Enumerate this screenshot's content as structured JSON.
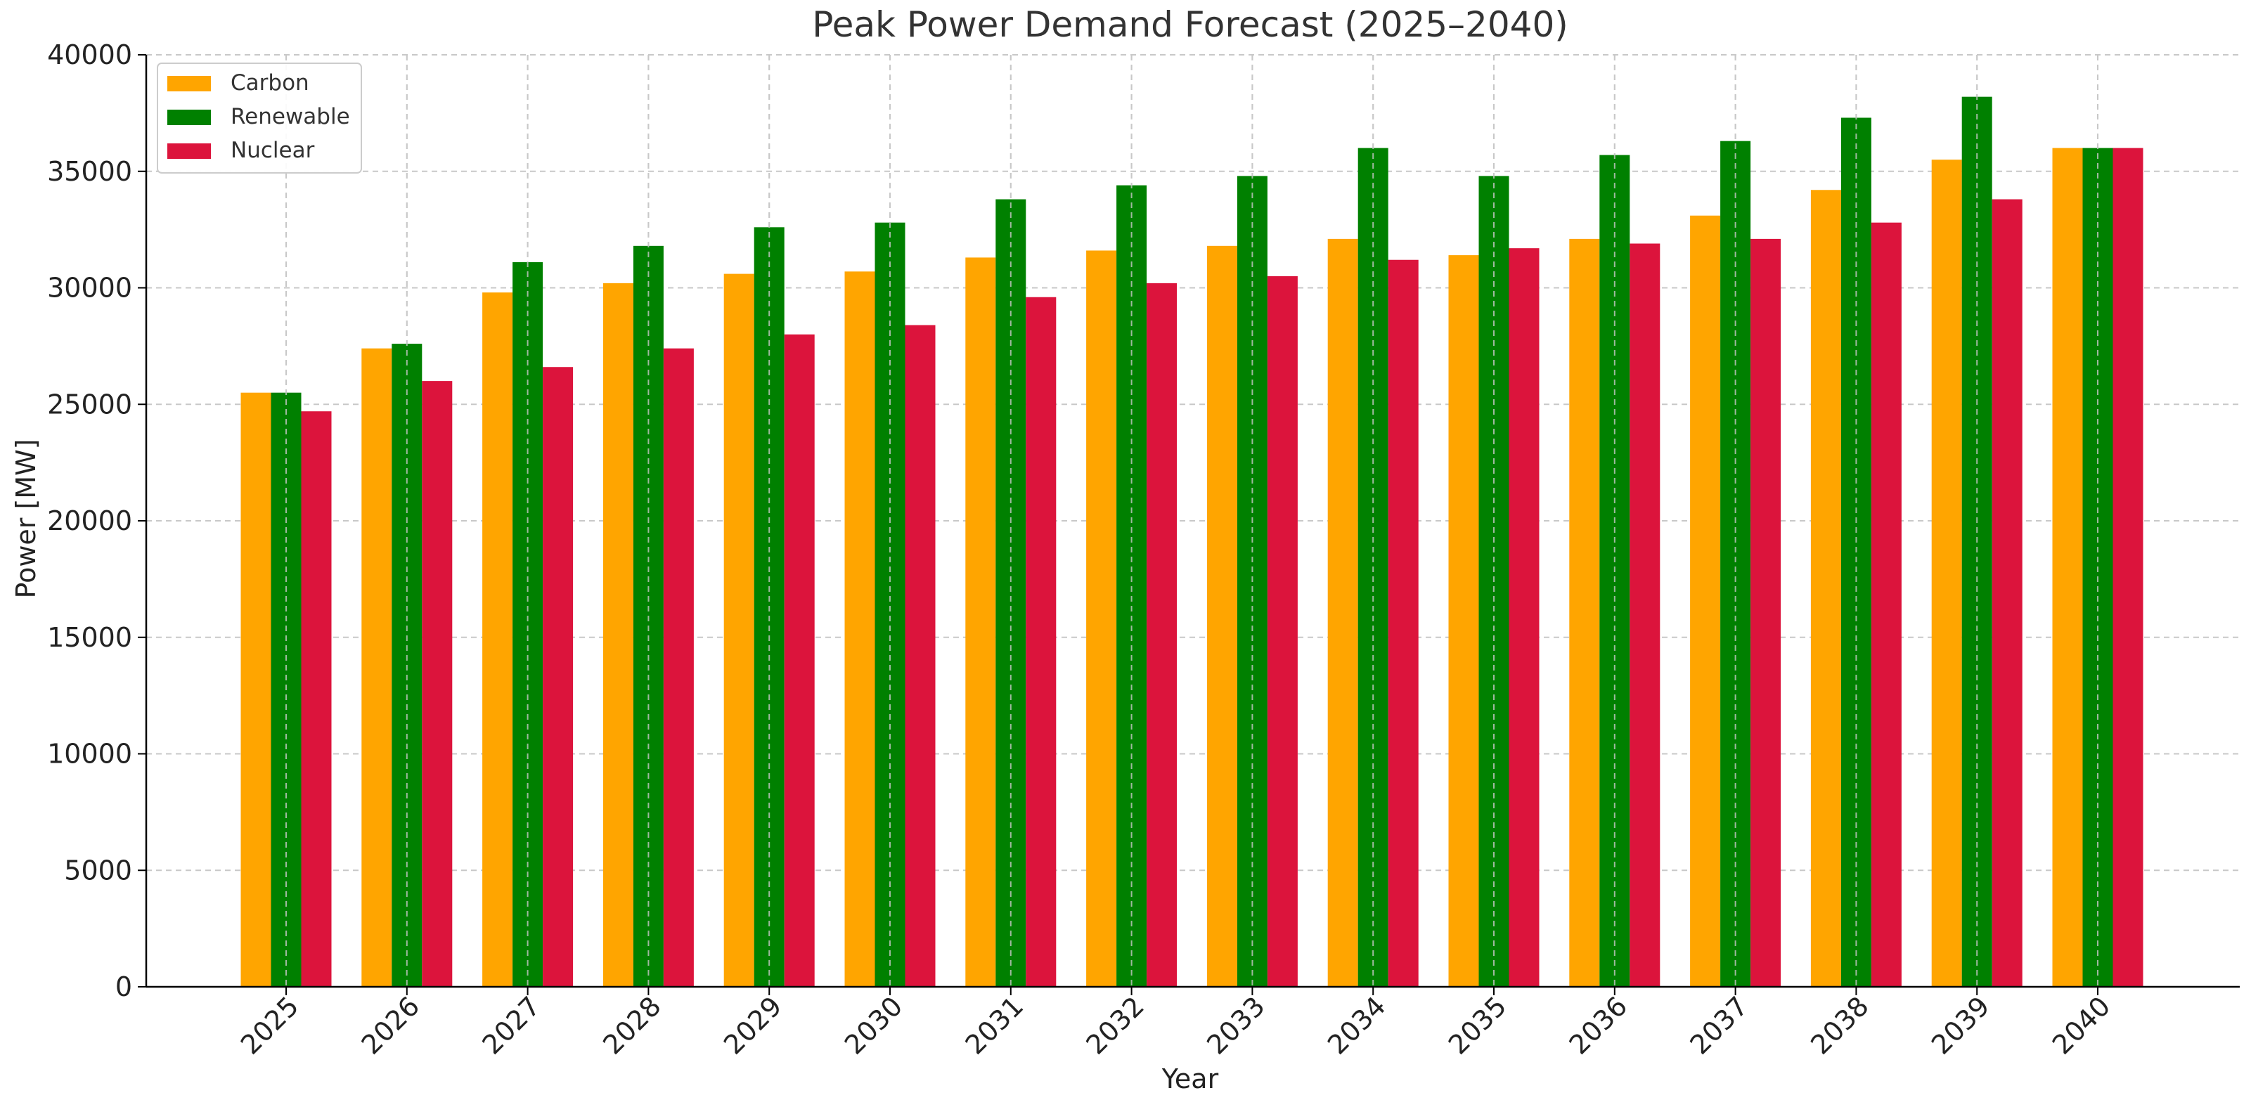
{
  "chart_data": {
    "type": "bar",
    "title": "Peak Power Demand Forecast (2025–2040)",
    "xlabel": "Year",
    "ylabel": "Power [MW]",
    "ylim": [
      0,
      40000
    ],
    "yticks": [
      0,
      5000,
      10000,
      15000,
      20000,
      25000,
      30000,
      35000,
      40000
    ],
    "categories": [
      "2025",
      "2026",
      "2027",
      "2028",
      "2029",
      "2030",
      "2031",
      "2032",
      "2033",
      "2034",
      "2035",
      "2036",
      "2037",
      "2038",
      "2039",
      "2040"
    ],
    "series": [
      {
        "name": "Carbon",
        "color": "#FFA500",
        "values": [
          25500,
          27400,
          29800,
          30200,
          30600,
          30700,
          31300,
          31600,
          31800,
          32100,
          31400,
          32100,
          33100,
          34200,
          35500,
          36000
        ]
      },
      {
        "name": "Renewable",
        "color": "#008000",
        "values": [
          25500,
          27600,
          31100,
          31800,
          32600,
          32800,
          33800,
          34400,
          34800,
          36000,
          34800,
          35700,
          36300,
          37300,
          38200,
          36000
        ]
      },
      {
        "name": "Nuclear",
        "color": "#DC143C",
        "values": [
          24700,
          26000,
          26600,
          27400,
          28000,
          28400,
          29600,
          30200,
          30500,
          31200,
          31700,
          31900,
          32100,
          32800,
          33800,
          36000
        ]
      }
    ],
    "grid": true,
    "legend_position": "top-left"
  }
}
